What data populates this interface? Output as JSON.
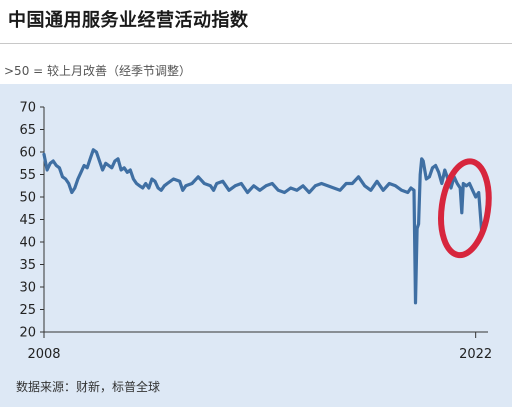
{
  "header": {
    "title": "中国通用服务业经营活动指数",
    "subtitle": ">50 = 较上月改善（经季节调整）"
  },
  "footer": {
    "source": "数据来源：财新，标普全球"
  },
  "colors": {
    "line": "#3f6fa3",
    "background": "#dde8f5",
    "highlight_ring": "#d7263d",
    "axis": "#333333"
  },
  "chart_data": {
    "type": "line",
    "title": "中国通用服务业经营活动指数",
    "subtitle": ">50 = 较上月改善（经季节调整）",
    "ylim": [
      20,
      70
    ],
    "yticks": [
      20,
      25,
      30,
      35,
      40,
      45,
      50,
      55,
      60,
      65,
      70
    ],
    "xlim": [
      2008.0,
      2022.4
    ],
    "xtick_labels": [
      {
        "x": 2008.0,
        "label": "2008"
      },
      {
        "x": 2022.0,
        "label": "2022"
      }
    ],
    "grid": false,
    "legend": "none",
    "highlight": {
      "shape": "ellipse",
      "x_range": [
        2020.9,
        2022.4
      ],
      "y_range": [
        37,
        58
      ]
    },
    "series": [
      {
        "x": [
          2008.0,
          2008.1,
          2008.2,
          2008.3,
          2008.4,
          2008.5,
          2008.6,
          2008.7,
          2008.8,
          2008.9,
          2009.0,
          2009.1,
          2009.2,
          2009.3,
          2009.4,
          2009.5,
          2009.6,
          2009.7,
          2009.8,
          2009.9,
          2010.0,
          2010.1,
          2010.2,
          2010.3,
          2010.4,
          2010.5,
          2010.6,
          2010.7,
          2010.8,
          2010.9,
          2011.0,
          2011.1,
          2011.2,
          2011.3,
          2011.4,
          2011.5,
          2011.6,
          2011.7,
          2011.8,
          2011.9,
          2012.0,
          2012.2,
          2012.4,
          2012.5,
          2012.6,
          2012.8,
          2013.0,
          2013.2,
          2013.4,
          2013.5,
          2013.6,
          2013.8,
          2014.0,
          2014.2,
          2014.4,
          2014.6,
          2014.8,
          2015.0,
          2015.2,
          2015.4,
          2015.6,
          2015.8,
          2016.0,
          2016.2,
          2016.4,
          2016.6,
          2016.8,
          2017.0,
          2017.2,
          2017.4,
          2017.6,
          2017.8,
          2018.0,
          2018.2,
          2018.4,
          2018.6,
          2018.8,
          2019.0,
          2019.2,
          2019.4,
          2019.6,
          2019.8,
          2019.9,
          2020.0,
          2020.05,
          2020.1,
          2020.15,
          2020.2,
          2020.25,
          2020.3,
          2020.4,
          2020.5,
          2020.6,
          2020.7,
          2020.8,
          2020.9,
          2021.0,
          2021.1,
          2021.2,
          2021.3,
          2021.4,
          2021.5,
          2021.55,
          2021.6,
          2021.7,
          2021.8,
          2021.9,
          2022.0,
          2022.1,
          2022.2
        ],
        "values": [
          59.5,
          56.0,
          57.5,
          58.0,
          57.0,
          56.5,
          54.5,
          54.0,
          53.0,
          51.0,
          52.0,
          54.0,
          55.5,
          57.0,
          56.5,
          58.5,
          60.5,
          60.0,
          58.0,
          56.0,
          57.5,
          57.0,
          56.5,
          58.0,
          58.5,
          56.0,
          56.5,
          55.5,
          56.0,
          54.0,
          53.0,
          52.5,
          52.0,
          53.0,
          52.0,
          54.0,
          53.5,
          52.0,
          51.5,
          52.5,
          53.0,
          54.0,
          53.5,
          51.5,
          52.5,
          53.0,
          54.5,
          53.0,
          52.5,
          51.5,
          53.0,
          53.5,
          51.5,
          52.5,
          53.0,
          51.0,
          52.5,
          51.5,
          52.5,
          53.0,
          51.5,
          51.0,
          52.0,
          51.5,
          52.5,
          51.0,
          52.5,
          53.0,
          52.5,
          52.0,
          51.5,
          53.0,
          53.0,
          54.5,
          52.5,
          51.5,
          53.5,
          51.5,
          53.0,
          52.5,
          51.5,
          51.0,
          52.0,
          51.5,
          26.5,
          43.0,
          44.0,
          55.0,
          58.5,
          58.0,
          54.0,
          54.5,
          56.5,
          57.0,
          55.5,
          53.0,
          56.0,
          54.0,
          52.0,
          54.5,
          53.0,
          52.0,
          46.5,
          53.0,
          52.5,
          53.0,
          51.5,
          50.0,
          51.0,
          42.0
        ]
      }
    ]
  }
}
